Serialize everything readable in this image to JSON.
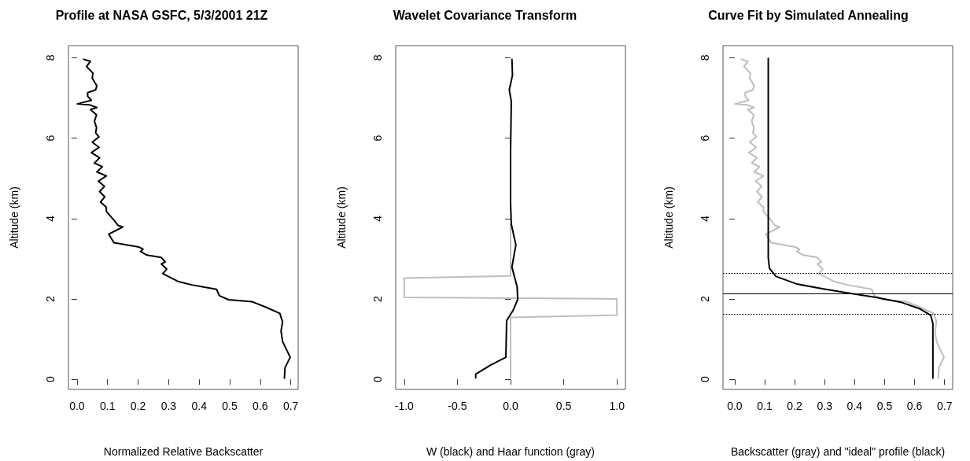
{
  "chart_data": [
    {
      "type": "line",
      "title": "Profile at NASA GSFC, 5/3/2001 21Z",
      "xlabel": "Normalized Relative Backscatter",
      "ylabel": "Altitude (km)",
      "marker": "none",
      "xlim": [
        -0.028,
        0.724
      ],
      "xticks": [
        {
          "value": 0,
          "label": "0.0"
        },
        0.1,
        0.2,
        0.3,
        0.4,
        0.5,
        0.6,
        0.7
      ],
      "ylim": [
        -0.25,
        8.3
      ],
      "yticks": [
        0,
        2,
        4,
        6,
        8
      ],
      "series": [
        {
          "color": "#000000",
          "line_style": "solid",
          "x": [
            0.022,
            0.044,
            0.031,
            0.052,
            0.05,
            0.065,
            0.061,
            0.035,
            0.035,
            0.047,
            0.001,
            0.04,
            0.065,
            0.044,
            0.064,
            0.057,
            0.064,
            0.061,
            0.072,
            0.05,
            0.072,
            0.047,
            0.074,
            0.057,
            0.083,
            0.065,
            0.096,
            0.07,
            0.09,
            0.074,
            0.091,
            0.077,
            0.096,
            0.096,
            0.121,
            0.134,
            0.15,
            0.104,
            0.121,
            0.203,
            0.216,
            0.208,
            0.229,
            0.276,
            0.289,
            0.276,
            0.294,
            0.281,
            0.333,
            0.376,
            0.457,
            0.466,
            0.496,
            0.574,
            0.617,
            0.664,
            0.673,
            0.668,
            0.673,
            0.698,
            0.681,
            0.679
          ],
          "values": [
            7.96,
            7.91,
            7.78,
            7.62,
            7.49,
            7.3,
            7.2,
            7.13,
            7.04,
            6.94,
            6.85,
            6.83,
            6.76,
            6.71,
            6.58,
            6.42,
            6.26,
            6.13,
            6.03,
            5.9,
            5.77,
            5.64,
            5.51,
            5.38,
            5.29,
            5.16,
            5.06,
            4.93,
            4.8,
            4.67,
            4.54,
            4.41,
            4.28,
            4.18,
            3.96,
            3.83,
            3.79,
            3.61,
            3.4,
            3.29,
            3.24,
            3.18,
            3.09,
            3.03,
            2.92,
            2.87,
            2.74,
            2.63,
            2.43,
            2.35,
            2.24,
            2.08,
            1.98,
            1.93,
            1.8,
            1.64,
            1.43,
            1.2,
            0.94,
            0.55,
            0.29,
            0.03
          ]
        }
      ]
    },
    {
      "type": "line",
      "title": "Wavelet Covariance Transform",
      "xlabel": "W (black) and Haar function (gray)",
      "ylabel": "Altitude (km)",
      "marker": "none",
      "xlim": [
        -1.08,
        1.08
      ],
      "xticks": [
        {
          "value": -1,
          "label": "-1.0"
        },
        {
          "value": -0.5,
          "label": "-0.5"
        },
        {
          "value": 0,
          "label": "0.0"
        },
        {
          "value": 0.5,
          "label": "0.5"
        },
        {
          "value": 1,
          "label": "1.0"
        }
      ],
      "ylim": [
        -0.25,
        8.3
      ],
      "yticks": [
        0,
        2,
        4,
        6,
        8
      ],
      "series": [
        {
          "color": "#bebebe",
          "line_style": "solid",
          "x": [
            0,
            0,
            -1,
            -1,
            1,
            1,
            0,
            0
          ],
          "values": [
            3.86,
            2.57,
            2.52,
            2.04,
            2.0,
            1.6,
            1.54,
            0.04
          ]
        },
        {
          "color": "#000000",
          "line_style": "solid",
          "x": [
            0.013,
            0.018,
            -0.012,
            0.007,
            0,
            0,
            0.007,
            0.05,
            0.032,
            0.013,
            0.062,
            0.067,
            0.025,
            -0.037,
            -0.044,
            -0.185,
            -0.328,
            -0.328
          ],
          "values": [
            7.96,
            7.56,
            7.2,
            6.91,
            5.67,
            4.38,
            3.86,
            3.34,
            3.08,
            2.79,
            2.3,
            1.99,
            1.72,
            1.46,
            0.55,
            0.36,
            0.13,
            0.04
          ]
        }
      ]
    },
    {
      "type": "line",
      "title": "Curve Fit by Simulated Annealing",
      "xlabel": "Backscatter (gray) and \"ideal\" profile (black)",
      "ylabel": "Altitude (km)",
      "marker": "none",
      "xlim": [
        -0.039,
        0.727
      ],
      "xticks": [
        {
          "value": 0,
          "label": "0.0"
        },
        0.1,
        0.2,
        0.3,
        0.4,
        0.5,
        0.6,
        0.7
      ],
      "ylim": [
        -0.25,
        8.3
      ],
      "yticks": [
        0,
        2,
        4,
        6,
        8
      ],
      "ref_lines": [
        {
          "axis": "y",
          "value": 2.64,
          "color": "#000000",
          "line_style": "dotted"
        },
        {
          "axis": "y",
          "value": 2.13,
          "color": "#000000",
          "line_style": "solid"
        },
        {
          "axis": "y",
          "value": 1.62,
          "color": "#000000",
          "line_style": "dotted"
        }
      ],
      "series": [
        {
          "color": "#bebebe",
          "line_style": "solid",
          "x": [
            0.022,
            0.044,
            0.031,
            0.052,
            0.05,
            0.065,
            0.061,
            0.035,
            0.035,
            0.047,
            0.001,
            0.04,
            0.065,
            0.044,
            0.064,
            0.057,
            0.064,
            0.061,
            0.072,
            0.05,
            0.072,
            0.047,
            0.074,
            0.057,
            0.083,
            0.065,
            0.096,
            0.07,
            0.09,
            0.074,
            0.091,
            0.077,
            0.096,
            0.096,
            0.121,
            0.134,
            0.15,
            0.104,
            0.121,
            0.203,
            0.216,
            0.208,
            0.229,
            0.276,
            0.289,
            0.276,
            0.294,
            0.281,
            0.333,
            0.376,
            0.457,
            0.466,
            0.496,
            0.574,
            0.617,
            0.664,
            0.673,
            0.668,
            0.673,
            0.698,
            0.681,
            0.679
          ],
          "values": [
            7.96,
            7.91,
            7.78,
            7.62,
            7.49,
            7.3,
            7.2,
            7.13,
            7.04,
            6.94,
            6.85,
            6.83,
            6.76,
            6.71,
            6.58,
            6.42,
            6.26,
            6.13,
            6.03,
            5.9,
            5.77,
            5.64,
            5.51,
            5.38,
            5.29,
            5.16,
            5.06,
            4.93,
            4.8,
            4.67,
            4.54,
            4.41,
            4.28,
            4.18,
            3.96,
            3.83,
            3.79,
            3.61,
            3.4,
            3.29,
            3.24,
            3.18,
            3.09,
            3.03,
            2.92,
            2.87,
            2.74,
            2.63,
            2.43,
            2.35,
            2.24,
            2.08,
            1.98,
            1.93,
            1.8,
            1.64,
            1.43,
            1.2,
            0.94,
            0.55,
            0.29,
            0.03
          ]
        },
        {
          "color": "#000000",
          "line_style": "solid",
          "x": [
            0.112,
            0.112,
            0.116,
            0.138,
            0.208,
            0.296,
            0.383,
            0.471,
            0.558,
            0.619,
            0.654,
            0.661,
            0.661
          ],
          "values": [
            7.98,
            3.02,
            2.76,
            2.56,
            2.37,
            2.25,
            2.14,
            2.04,
            1.91,
            1.75,
            1.59,
            1.39,
            0.03
          ]
        }
      ]
    }
  ]
}
